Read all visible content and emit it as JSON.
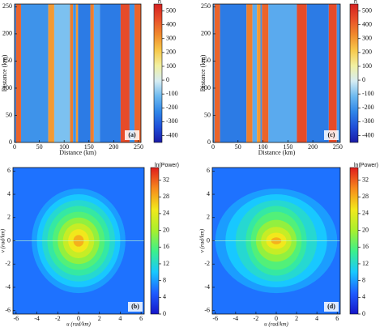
{
  "chart_data": [
    {
      "type": "stripes",
      "label": "(a)",
      "xlabel": "Distance (km)",
      "ylabel": "Distance (km)",
      "xlim": [
        0,
        255
      ],
      "ylim": [
        0,
        255
      ],
      "xticks": [
        0,
        50,
        100,
        150,
        200,
        250
      ],
      "yticks": [
        0,
        50,
        100,
        150,
        200,
        250
      ],
      "bins": [
        0,
        3,
        13,
        68,
        80,
        112,
        118,
        124,
        128,
        153,
        160,
        172,
        214,
        232,
        242,
        255
      ],
      "values": [
        -250,
        400,
        -200,
        300,
        -100,
        350,
        -200,
        300,
        -250,
        350,
        -150,
        -250,
        450,
        -200,
        400
      ],
      "colorbar_title": "h",
      "clim": [
        -450,
        550
      ],
      "cticks": [
        -400,
        -300,
        -200,
        -100,
        0,
        100,
        200,
        300,
        400,
        500
      ],
      "colormap": [
        "#1a1aa6",
        "#1f4fd9",
        "#2f86e8",
        "#6cb9f0",
        "#d6ecf2",
        "#f2f0a0",
        "#f7c84a",
        "#f08a2c",
        "#e8502a",
        "#d42020"
      ]
    },
    {
      "type": "stripes",
      "label": "(c)",
      "xlabel": "Distance (km)",
      "ylabel": "Distance (km)",
      "xlim": [
        0,
        255
      ],
      "ylim": [
        0,
        255
      ],
      "xticks": [
        0,
        50,
        100,
        150,
        200,
        250
      ],
      "yticks": [
        0,
        50,
        100,
        150,
        200,
        250
      ],
      "bins": [
        0,
        3,
        14,
        67,
        79,
        88,
        95,
        98,
        111,
        168,
        188,
        232,
        248,
        255
      ],
      "values": [
        -200,
        400,
        -250,
        350,
        -150,
        300,
        -200,
        400,
        -150,
        450,
        -250,
        450,
        -200
      ],
      "colorbar_title": "h",
      "clim": [
        -450,
        550
      ],
      "cticks": [
        -400,
        -300,
        -200,
        -100,
        0,
        100,
        200,
        300,
        400,
        500
      ],
      "colormap": [
        "#1a1aa6",
        "#1f4fd9",
        "#2f86e8",
        "#6cb9f0",
        "#d6ecf2",
        "#f2f0a0",
        "#f7c84a",
        "#f08a2c",
        "#e8502a",
        "#d42020"
      ]
    },
    {
      "type": "spectrum",
      "label": "(b)",
      "xlabel": "u (rad/km)",
      "ylabel": "v (rad/km)",
      "xlim": [
        -6.3,
        6.3
      ],
      "ylim": [
        -6.3,
        6.3
      ],
      "xticks": [
        -6,
        -4,
        -2,
        0,
        2,
        4,
        6
      ],
      "yticks": [
        -6,
        -4,
        -2,
        0,
        2,
        4,
        6
      ],
      "background": 6,
      "u_radius": [
        4.5,
        4,
        3.5,
        3,
        2.5,
        2,
        1.5,
        1,
        0.5
      ],
      "v_radius": [
        4.5,
        4,
        3.5,
        3,
        2.5,
        2,
        1.5,
        1,
        0.5
      ],
      "values": [
        8,
        10,
        12,
        14,
        16,
        19,
        22,
        25,
        28
      ],
      "colorbar_title": "ln(Power)",
      "clim": [
        0,
        35
      ],
      "cticks": [
        0,
        4,
        8,
        12,
        16,
        20,
        24,
        28,
        32
      ],
      "colormap": [
        "#1515c8",
        "#1f5cff",
        "#18c8ff",
        "#3cf08c",
        "#a8f02c",
        "#f2e81c",
        "#f78a1c",
        "#e01c1c"
      ]
    },
    {
      "type": "spectrum",
      "label": "(d)",
      "xlabel": "u (rad/km)",
      "ylabel": "v (rad/km)",
      "xlim": [
        -6.3,
        6.3
      ],
      "ylim": [
        -6.3,
        6.3
      ],
      "xticks": [
        -6,
        -4,
        -2,
        0,
        2,
        4,
        6
      ],
      "yticks": [
        -6,
        -4,
        -2,
        0,
        2,
        4,
        6
      ],
      "background": 6,
      "u_radius": [
        6,
        5,
        4,
        3,
        2.5,
        2,
        1.5,
        1,
        0.5
      ],
      "v_radius": [
        4.5,
        4,
        3.5,
        3,
        2.5,
        1.8,
        1.2,
        0.7,
        0.3
      ],
      "values": [
        8,
        10,
        12,
        14,
        16,
        19,
        22,
        25,
        28
      ],
      "colorbar_title": "ln(Power)",
      "clim": [
        0,
        35
      ],
      "cticks": [
        0,
        4,
        8,
        12,
        16,
        20,
        24,
        28,
        32
      ],
      "colormap": [
        "#1515c8",
        "#1f5cff",
        "#18c8ff",
        "#3cf08c",
        "#a8f02c",
        "#f2e81c",
        "#f78a1c",
        "#e01c1c"
      ]
    }
  ]
}
